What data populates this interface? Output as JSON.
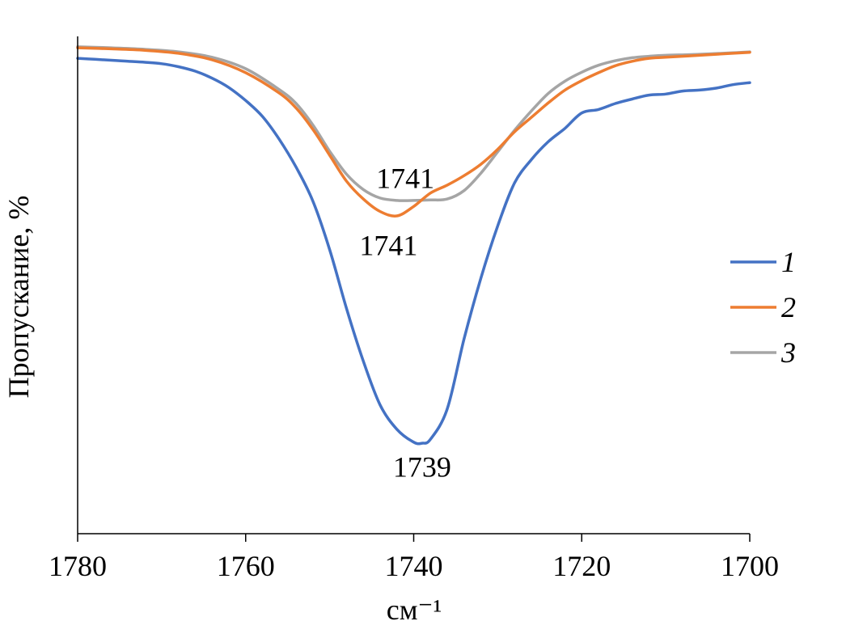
{
  "chart_data": {
    "type": "line",
    "xlabel": "см⁻¹",
    "ylabel": "Пропускание, %",
    "xlim": [
      1780,
      1700
    ],
    "x_reversed": true,
    "ylim": [
      0,
      100
    ],
    "x_ticks": [
      "1780",
      "1760",
      "1740",
      "1720",
      "1700"
    ],
    "y_ticks_shown": false,
    "grid": false,
    "legend_position": "right",
    "series": [
      {
        "name": "1",
        "color": "#4472C4",
        "x": [
          1780,
          1778,
          1776,
          1774,
          1772,
          1770,
          1768,
          1766,
          1764,
          1762,
          1760,
          1758,
          1756,
          1754,
          1752,
          1750,
          1748,
          1746,
          1744,
          1742,
          1740,
          1739,
          1738,
          1736,
          1734,
          1732,
          1730,
          1728,
          1726,
          1724,
          1722,
          1720,
          1718,
          1716,
          1714,
          1712,
          1710,
          1708,
          1706,
          1704,
          1702,
          1700
        ],
        "y": [
          95.6,
          95.4,
          95.2,
          95.0,
          94.8,
          94.5,
          93.9,
          93.0,
          91.6,
          89.7,
          87.1,
          83.9,
          79.3,
          73.7,
          66.9,
          57.1,
          45.3,
          34.7,
          25.9,
          21.0,
          18.4,
          18.2,
          19.0,
          25.1,
          39.2,
          51.4,
          61.9,
          70.5,
          75.2,
          78.8,
          81.5,
          84.6,
          85.3,
          86.5,
          87.4,
          88.2,
          88.4,
          89.0,
          89.2,
          89.6,
          90.3,
          90.7
        ]
      },
      {
        "name": "2",
        "color": "#ED7D31",
        "x": [
          1780,
          1776,
          1772,
          1768,
          1764,
          1760,
          1756,
          1754,
          1752,
          1750,
          1748,
          1746,
          1744,
          1742,
          1740,
          1738,
          1736,
          1734,
          1732,
          1730,
          1728,
          1726,
          1724,
          1722,
          1720,
          1718,
          1716,
          1714,
          1712,
          1710,
          1706,
          1702,
          1700
        ],
        "y": [
          97.7,
          97.5,
          97.2,
          96.6,
          95.3,
          92.7,
          88.6,
          85.6,
          81.3,
          76.1,
          70.9,
          67.3,
          64.8,
          63.9,
          65.8,
          68.5,
          70.1,
          72.0,
          74.3,
          77.3,
          80.8,
          83.7,
          86.6,
          89.2,
          91.1,
          92.7,
          94.1,
          95.0,
          95.6,
          95.8,
          96.2,
          96.6,
          96.8
        ]
      },
      {
        "name": "3",
        "color": "#A5A5A5",
        "x": [
          1780,
          1776,
          1772,
          1768,
          1764,
          1760,
          1756,
          1754,
          1752,
          1750,
          1748,
          1746,
          1744,
          1742,
          1740,
          1738,
          1736,
          1734,
          1732,
          1730,
          1728,
          1726,
          1724,
          1722,
          1720,
          1718,
          1716,
          1714,
          1712,
          1710,
          1706,
          1702,
          1700
        ],
        "y": [
          97.9,
          97.7,
          97.4,
          96.9,
          95.8,
          93.5,
          89.3,
          86.5,
          82.2,
          76.9,
          72.3,
          69.2,
          67.5,
          67.0,
          67.0,
          67.1,
          67.3,
          69.0,
          72.5,
          76.8,
          81.1,
          85.0,
          88.5,
          91.0,
          92.8,
          94.2,
          95.1,
          95.7,
          96.0,
          96.2,
          96.4,
          96.7,
          96.9
        ]
      }
    ],
    "annotations": [
      {
        "text": "1741",
        "x": 1741,
        "y": 69.5
      },
      {
        "text": "1741",
        "x": 1743,
        "y": 56.0
      },
      {
        "text": "1739",
        "x": 1739,
        "y": 11.5
      }
    ]
  }
}
